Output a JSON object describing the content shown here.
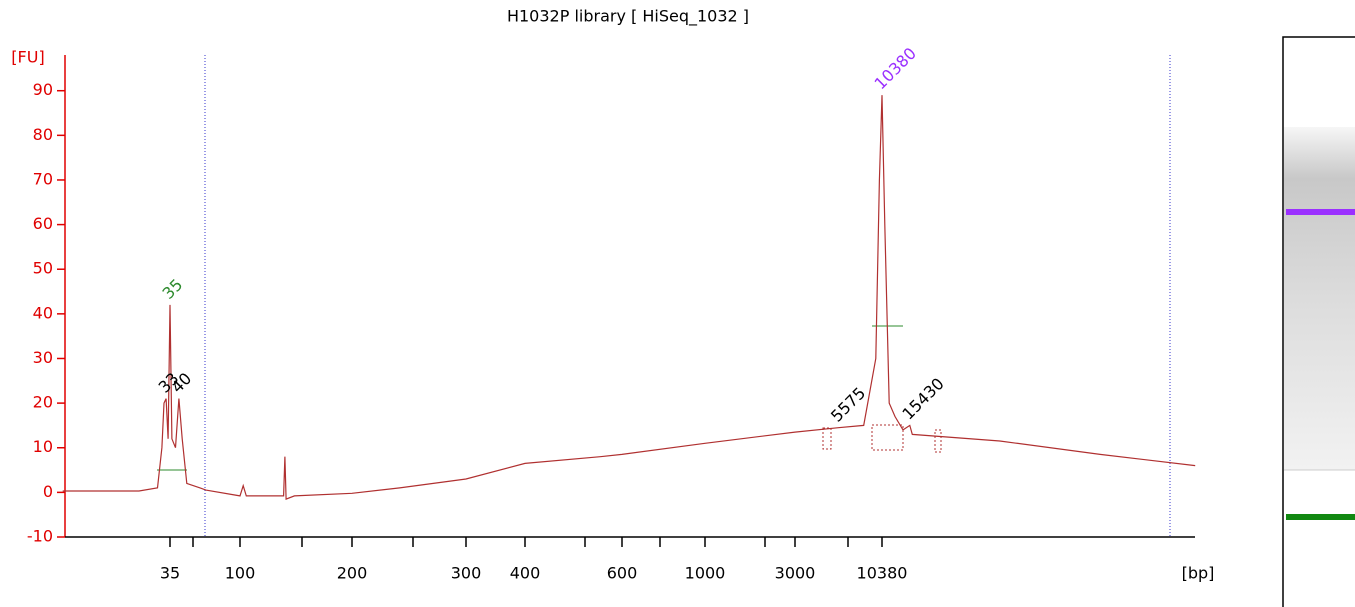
{
  "chart_data": {
    "type": "line",
    "title": "H1032P library  [ HiSeq_1032 ]",
    "xlabel": "[bp]",
    "ylabel": "[FU]",
    "x": [
      7,
      22,
      29,
      31,
      32,
      33,
      34,
      35,
      36,
      38,
      40,
      42,
      45,
      55,
      60,
      100,
      102,
      104,
      120,
      131,
      132,
      133,
      140,
      200,
      237,
      300,
      400,
      548,
      600,
      1000,
      3000,
      5575,
      8000,
      9500,
      10000,
      10380,
      10800,
      11500,
      12500,
      14000,
      15430,
      16000,
      55700,
      233000,
      905000
    ],
    "values": [
      0.3,
      0.3,
      1,
      10,
      20,
      21,
      12,
      42,
      12,
      10,
      21,
      12,
      2,
      1,
      0.5,
      -0.8,
      1.5,
      -0.8,
      -0.8,
      -0.8,
      8,
      -1.5,
      -0.8,
      -0.2,
      1,
      3,
      6.5,
      8,
      8.5,
      11,
      13.5,
      14.5,
      15,
      30,
      70,
      89,
      60,
      20,
      17,
      14,
      15,
      13,
      11.5,
      8.5,
      6
    ],
    "color": "#b03030",
    "xticks": [
      35,
      100,
      200,
      300,
      400,
      600,
      1000,
      3000,
      10380
    ],
    "ylim": [
      -10,
      98
    ],
    "yticks": [
      -10,
      0,
      10,
      20,
      30,
      40,
      50,
      60,
      70,
      80,
      90
    ],
    "axis_color": "#e00000",
    "annotations": [
      {
        "text": "35",
        "x": 35,
        "y": 42,
        "color": "#2e8b2e"
      },
      {
        "text": "33",
        "x": 33,
        "y": 21,
        "color": "#000000"
      },
      {
        "text": "40",
        "x": 40,
        "y": 21,
        "color": "#000000"
      },
      {
        "text": "5575",
        "x": 5575,
        "y": 14.5,
        "color": "#000000"
      },
      {
        "text": "10380",
        "x": 10380,
        "y": 89,
        "color": "#9b30ff"
      },
      {
        "text": "15430",
        "x": 15430,
        "y": 15,
        "color": "#000000"
      }
    ]
  }
}
